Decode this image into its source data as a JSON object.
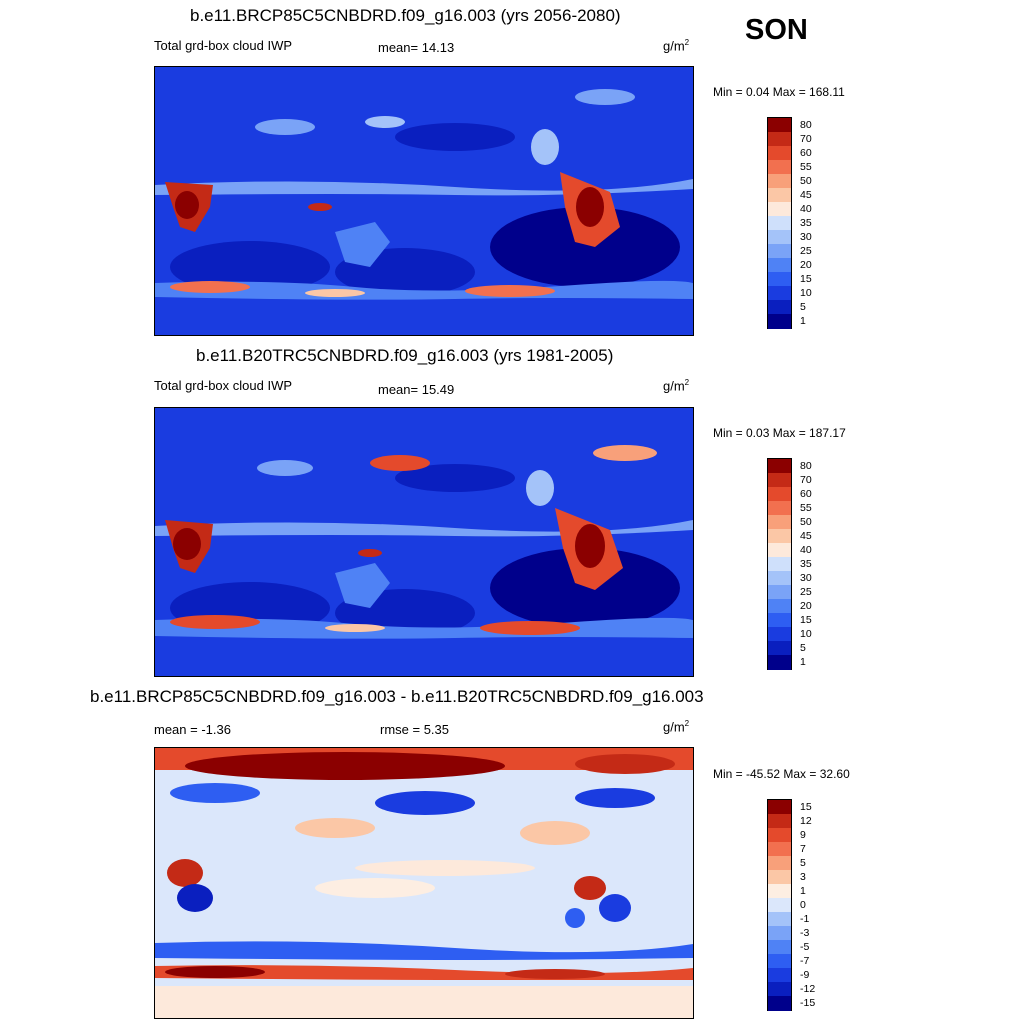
{
  "season": "SON",
  "units": "g/m",
  "units_exp": "2",
  "palettes": {
    "abs": [
      "#00008b",
      "#0a1fbf",
      "#1a3ce0",
      "#2e5ef2",
      "#4f82f5",
      "#7aa3f7",
      "#a4c3f9",
      "#cfe0fb",
      "#fde9db",
      "#fbc7a6",
      "#f8a07a",
      "#f2704f",
      "#e44a2c",
      "#c42a16",
      "#8b0000"
    ],
    "diff": [
      "#00008b",
      "#0a1fbf",
      "#1a3ce0",
      "#2e5ef2",
      "#4f82f5",
      "#7aa3f7",
      "#a4c3f9",
      "#dbe7fb",
      "#fdeee2",
      "#fbc7a6",
      "#f8a07a",
      "#f2704f",
      "#e44a2c",
      "#c42a16",
      "#8b0000"
    ]
  },
  "panels": [
    {
      "title": "b.e11.BRCP85C5CNBDRD.f09_g16.003 (yrs 2056-2080)",
      "left_label": "Total grd-box cloud IWP",
      "center_label": "mean=  14.13",
      "minmax": "Min =   0.04 Max = 168.11",
      "colorbar_levels": [
        "80",
        "70",
        "60",
        "55",
        "50",
        "45",
        "40",
        "35",
        "30",
        "25",
        "20",
        "15",
        "10",
        "5",
        "1"
      ]
    },
    {
      "title": "b.e11.B20TRC5CNBDRD.f09_g16.003 (yrs 1981-2005)",
      "left_label": "Total grd-box cloud IWP",
      "center_label": "mean=  15.49",
      "minmax": "Min =   0.03 Max = 187.17",
      "colorbar_levels": [
        "80",
        "70",
        "60",
        "55",
        "50",
        "45",
        "40",
        "35",
        "30",
        "25",
        "20",
        "15",
        "10",
        "5",
        "1"
      ]
    },
    {
      "title": "b.e11.BRCP85C5CNBDRD.f09_g16.003 - b.e11.B20TRC5CNBDRD.f09_g16.003",
      "left_label": "mean =  -1.36",
      "center_label": "rmse =   5.35",
      "minmax": "Min = -45.52 Max =  32.60",
      "colorbar_levels": [
        "15",
        "12",
        "9",
        "7",
        "5",
        "3",
        "1",
        "0",
        "-1",
        "-3",
        "-5",
        "-7",
        "-9",
        "-12",
        "-15"
      ]
    }
  ],
  "chart_data": [
    {
      "type": "heatmap",
      "title": "b.e11.BRCP85C5CNBDRD.f09_g16.003 (yrs 2056-2080)",
      "variable": "Total grd-box cloud IWP",
      "units": "g/m2",
      "mean": 14.13,
      "min": 0.04,
      "max": 168.11,
      "season": "SON",
      "contour_levels": [
        1,
        5,
        10,
        15,
        20,
        25,
        30,
        35,
        40,
        45,
        50,
        55,
        60,
        70,
        80
      ]
    },
    {
      "type": "heatmap",
      "title": "b.e11.B20TRC5CNBDRD.f09_g16.003 (yrs 1981-2005)",
      "variable": "Total grd-box cloud IWP",
      "units": "g/m2",
      "mean": 15.49,
      "min": 0.03,
      "max": 187.17,
      "season": "SON",
      "contour_levels": [
        1,
        5,
        10,
        15,
        20,
        25,
        30,
        35,
        40,
        45,
        50,
        55,
        60,
        70,
        80
      ]
    },
    {
      "type": "heatmap",
      "title": "b.e11.BRCP85C5CNBDRD.f09_g16.003 - b.e11.B20TRC5CNBDRD.f09_g16.003",
      "units": "g/m2",
      "mean": -1.36,
      "rmse": 5.35,
      "min": -45.52,
      "max": 32.6,
      "season": "SON",
      "contour_levels": [
        -15,
        -12,
        -9,
        -7,
        -5,
        -3,
        -1,
        0,
        1,
        3,
        5,
        7,
        9,
        12,
        15
      ]
    }
  ]
}
